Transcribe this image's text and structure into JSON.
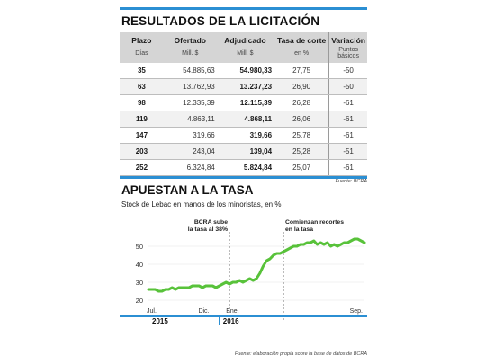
{
  "table_section": {
    "title": "RESULTADOS DE LA LICITACIÓN",
    "headers": [
      "Plazo",
      "Ofertado",
      "Adjudicado",
      "Tasa de corte",
      "Variación"
    ],
    "subheaders": [
      "Días",
      "Mill. $",
      "Mill. $",
      "en %",
      "Puntos básicos"
    ],
    "rows": [
      [
        "35",
        "54.885,63",
        "54.980,33",
        "27,75",
        "-50"
      ],
      [
        "63",
        "13.762,93",
        "13.237,23",
        "26,90",
        "-50"
      ],
      [
        "98",
        "12.335,39",
        "12.115,39",
        "26,28",
        "-61"
      ],
      [
        "119",
        "4.863,11",
        "4.868,11",
        "26,06",
        "-61"
      ],
      [
        "147",
        "319,66",
        "319,66",
        "25,78",
        "-61"
      ],
      [
        "203",
        "243,04",
        "139,04",
        "25,28",
        "-51"
      ],
      [
        "252",
        "6.324,84",
        "5.824,84",
        "25,07",
        "-61"
      ]
    ],
    "source": "Fuente: BCRA"
  },
  "chart_section": {
    "title": "APUESTAN A LA TASA",
    "subtitle": "Stock de Lebac en manos de los minoristas, en %",
    "source": "Fuente: elaboración propia sobre la base de datos de BCRA",
    "accent_color": "#2b8fd3",
    "line_color": "#58c23a"
  },
  "chart_data": {
    "type": "line",
    "title": "APUESTAN A LA TASA",
    "subtitle": "Stock de Lebac en manos de los minoristas, en %",
    "x_tick_labels": [
      "Jul.",
      "Dic.",
      "Ene.",
      "Sep."
    ],
    "year_labels": [
      "2015",
      "2016"
    ],
    "y_ticks": [
      20,
      30,
      40,
      50
    ],
    "ylim": [
      18,
      57
    ],
    "x_range": [
      "2015-07",
      "2016-09"
    ],
    "annotations": [
      "BCRA sube la tasa al 38%",
      "Comienzan recortes en la tasa"
    ],
    "series": [
      {
        "values": [
          26,
          26,
          26,
          25,
          25,
          26,
          26,
          27,
          26,
          27,
          27,
          27,
          27,
          28,
          28,
          28,
          27,
          28,
          28,
          28,
          27,
          28,
          29,
          30,
          29,
          30,
          30,
          31,
          30,
          31,
          32,
          31,
          32,
          35,
          39,
          42,
          43,
          45,
          46,
          46,
          47,
          48,
          49,
          50,
          50,
          51,
          51,
          52,
          52,
          53,
          51,
          52,
          51,
          52,
          50,
          51,
          50,
          51,
          52,
          52,
          53,
          54,
          54,
          53,
          52
        ]
      }
    ]
  }
}
